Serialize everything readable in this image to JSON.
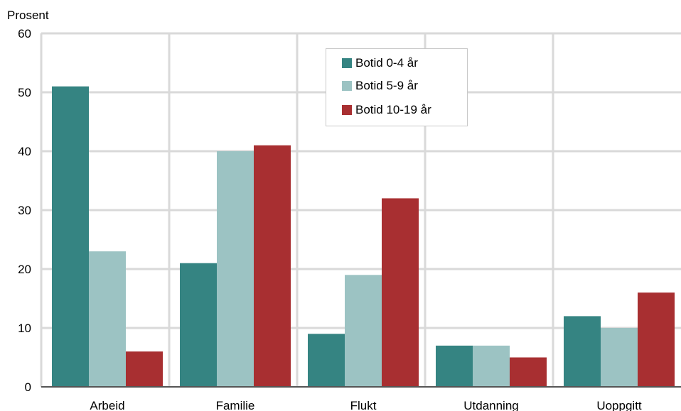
{
  "chart_data": {
    "type": "bar",
    "ylabel": "Prosent",
    "ylim": [
      0,
      60
    ],
    "yticks": [
      0,
      10,
      20,
      30,
      40,
      50,
      60
    ],
    "categories": [
      "Arbeid",
      "Familie",
      "Flukt",
      "Utdanning",
      "Uoppgitt"
    ],
    "series": [
      {
        "name": "Botid 0-4 år",
        "color": "#358482",
        "values": [
          51,
          21,
          9,
          7,
          12
        ]
      },
      {
        "name": "Botid 5-9 år",
        "color": "#9cc3c3",
        "values": [
          23,
          40,
          19,
          7,
          10
        ]
      },
      {
        "name": "Botid 10-19 år",
        "color": "#a82f31",
        "values": [
          6,
          41,
          32,
          5,
          16
        ]
      }
    ],
    "grid": true,
    "legend_position": "top-center"
  }
}
